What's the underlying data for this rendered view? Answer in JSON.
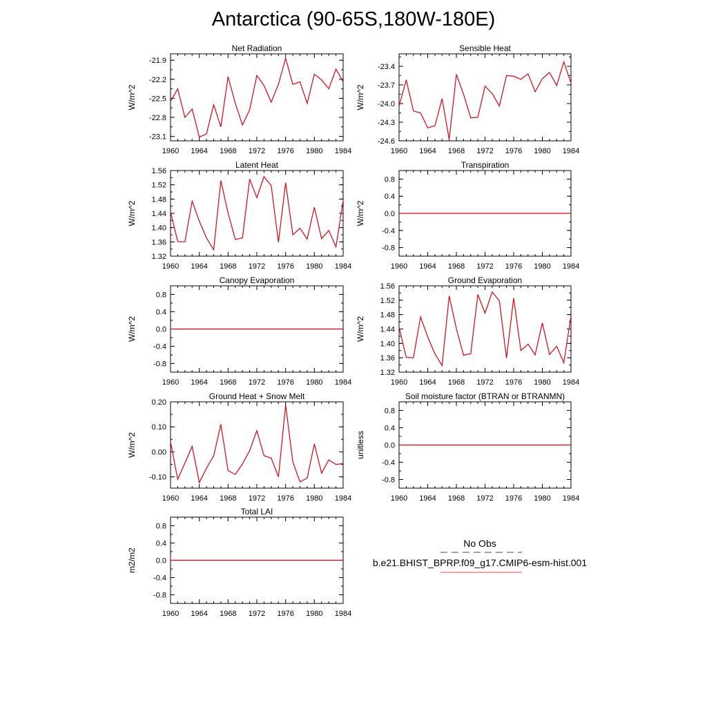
{
  "title": "Antarctica (90-65S,180W-180E)",
  "colors": {
    "model": "#e0000f",
    "axis": "#000000",
    "obs": "#3a3aa8",
    "legend_line": "#ff4040"
  },
  "legend": {
    "obs_label": "No Obs",
    "model_label": "b.e21.BHIST_BPRP.f09_g17.CMIP6-esm-hist.001"
  },
  "chart_data": [
    {
      "type": "line",
      "title": "Net Radiation",
      "ylabel": "W/m^2",
      "xlim": [
        1960,
        1984
      ],
      "ylim": [
        -23.17,
        -21.8
      ],
      "xticks": [
        "1960",
        "1964",
        "1968",
        "1972",
        "1976",
        "1980",
        "1984"
      ],
      "yticks": [
        "-21.9",
        "-22.2",
        "-22.5",
        "-22.8",
        "-23.1"
      ],
      "ytick_values": [
        -21.9,
        -22.2,
        -22.5,
        -22.8,
        -23.1
      ],
      "x": [
        1960,
        1961,
        1962,
        1963,
        1964,
        1965,
        1966,
        1967,
        1968,
        1969,
        1970,
        1971,
        1972,
        1973,
        1974,
        1975,
        1976,
        1977,
        1978,
        1979,
        1980,
        1981,
        1982,
        1983,
        1984
      ],
      "series": [
        {
          "values": [
            -22.55,
            -22.35,
            -22.8,
            -22.67,
            -23.11,
            -23.06,
            -22.6,
            -22.95,
            -22.16,
            -22.58,
            -22.92,
            -22.68,
            -22.14,
            -22.3,
            -22.56,
            -22.28,
            -21.87,
            -22.28,
            -22.24,
            -22.58,
            -22.12,
            -22.21,
            -22.35,
            -22.04,
            -22.24
          ]
        }
      ]
    },
    {
      "type": "line",
      "title": "Sensible Heat",
      "ylabel": "W/m^2",
      "xlim": [
        1960,
        1984
      ],
      "ylim": [
        -24.6,
        -23.2
      ],
      "xticks": [
        "1960",
        "1964",
        "1968",
        "1972",
        "1976",
        "1980",
        "1984"
      ],
      "yticks": [
        "-23.4",
        "-23.7",
        "-24.0",
        "-24.3",
        "-24.6"
      ],
      "ytick_values": [
        -23.4,
        -23.7,
        -24.0,
        -24.3,
        -24.6
      ],
      "x": [
        1960,
        1961,
        1962,
        1963,
        1964,
        1965,
        1966,
        1967,
        1968,
        1969,
        1970,
        1971,
        1972,
        1973,
        1974,
        1975,
        1976,
        1977,
        1978,
        1979,
        1980,
        1981,
        1982,
        1983,
        1984
      ],
      "series": [
        {
          "values": [
            -24.04,
            -23.62,
            -24.12,
            -24.15,
            -24.39,
            -24.36,
            -23.92,
            -24.58,
            -23.53,
            -23.85,
            -24.23,
            -24.22,
            -23.72,
            -23.84,
            -24.04,
            -23.55,
            -23.56,
            -23.61,
            -23.52,
            -23.81,
            -23.6,
            -23.5,
            -23.71,
            -23.33,
            -23.67
          ]
        }
      ]
    },
    {
      "type": "line",
      "title": "Latent Heat",
      "ylabel": "W/m^2",
      "xlim": [
        1960,
        1984
      ],
      "ylim": [
        1.32,
        1.56
      ],
      "xticks": [
        "1960",
        "1964",
        "1968",
        "1972",
        "1976",
        "1980",
        "1984"
      ],
      "yticks": [
        "1.56",
        "1.52",
        "1.48",
        "1.44",
        "1.40",
        "1.36",
        "1.32"
      ],
      "ytick_values": [
        1.56,
        1.52,
        1.48,
        1.44,
        1.4,
        1.36,
        1.32
      ],
      "x": [
        1960,
        1961,
        1962,
        1963,
        1964,
        1965,
        1966,
        1967,
        1968,
        1969,
        1970,
        1971,
        1972,
        1973,
        1974,
        1975,
        1976,
        1977,
        1978,
        1979,
        1980,
        1981,
        1982,
        1983,
        1984
      ],
      "series": [
        {
          "values": [
            1.445,
            1.361,
            1.36,
            1.474,
            1.418,
            1.371,
            1.338,
            1.532,
            1.441,
            1.367,
            1.371,
            1.536,
            1.484,
            1.543,
            1.518,
            1.359,
            1.526,
            1.38,
            1.398,
            1.368,
            1.457,
            1.369,
            1.392,
            1.346,
            1.476
          ]
        }
      ]
    },
    {
      "type": "line",
      "title": "Transpiration",
      "ylabel": "W/m^2",
      "xlim": [
        1960,
        1984
      ],
      "ylim": [
        -1.0,
        1.0
      ],
      "xticks": [
        "1960",
        "1964",
        "1968",
        "1972",
        "1976",
        "1980",
        "1984"
      ],
      "yticks": [
        "0.8",
        "0.4",
        "0.0",
        "-0.4",
        "-0.8"
      ],
      "ytick_values": [
        0.8,
        0.4,
        0.0,
        -0.4,
        -0.8
      ],
      "x": [
        1960,
        1984
      ],
      "series": [
        {
          "values": [
            0.0,
            0.0
          ]
        }
      ]
    },
    {
      "type": "line",
      "title": "Canopy Evaporation",
      "ylabel": "W/m^2",
      "xlim": [
        1960,
        1984
      ],
      "ylim": [
        -1.0,
        1.0
      ],
      "xticks": [
        "1960",
        "1964",
        "1968",
        "1972",
        "1976",
        "1980",
        "1984"
      ],
      "yticks": [
        "0.8",
        "0.4",
        "0.0",
        "-0.4",
        "-0.8"
      ],
      "ytick_values": [
        0.8,
        0.4,
        0.0,
        -0.4,
        -0.8
      ],
      "x": [
        1960,
        1984
      ],
      "series": [
        {
          "values": [
            0.0,
            0.0
          ]
        }
      ]
    },
    {
      "type": "line",
      "title": "Ground Evaporation",
      "ylabel": "W/m^2",
      "xlim": [
        1960,
        1984
      ],
      "ylim": [
        1.32,
        1.56
      ],
      "xticks": [
        "1960",
        "1964",
        "1968",
        "1972",
        "1976",
        "1980",
        "1984"
      ],
      "yticks": [
        "1.56",
        "1.52",
        "1.48",
        "1.44",
        "1.40",
        "1.36",
        "1.32"
      ],
      "ytick_values": [
        1.56,
        1.52,
        1.48,
        1.44,
        1.4,
        1.36,
        1.32
      ],
      "x": [
        1960,
        1961,
        1962,
        1963,
        1964,
        1965,
        1966,
        1967,
        1968,
        1969,
        1970,
        1971,
        1972,
        1973,
        1974,
        1975,
        1976,
        1977,
        1978,
        1979,
        1980,
        1981,
        1982,
        1983,
        1984
      ],
      "series": [
        {
          "values": [
            1.445,
            1.361,
            1.36,
            1.474,
            1.418,
            1.371,
            1.338,
            1.532,
            1.441,
            1.367,
            1.371,
            1.536,
            1.484,
            1.543,
            1.518,
            1.359,
            1.526,
            1.38,
            1.398,
            1.368,
            1.457,
            1.369,
            1.392,
            1.346,
            1.476
          ]
        }
      ]
    },
    {
      "type": "line",
      "title": "Ground Heat + Snow Melt",
      "ylabel": "W/m^2",
      "xlim": [
        1960,
        1984
      ],
      "ylim": [
        -0.145,
        0.2
      ],
      "xticks": [
        "1960",
        "1964",
        "1968",
        "1972",
        "1976",
        "1980",
        "1984"
      ],
      "yticks": [
        "0.20",
        "0.10",
        "0.00",
        "-0.10"
      ],
      "ytick_values": [
        0.2,
        0.1,
        0.0,
        -0.1
      ],
      "x": [
        1960,
        1961,
        1962,
        1963,
        1964,
        1965,
        1966,
        1967,
        1968,
        1969,
        1970,
        1971,
        1972,
        1973,
        1974,
        1975,
        1976,
        1977,
        1978,
        1979,
        1980,
        1981,
        1982,
        1983,
        1984
      ],
      "series": [
        {
          "values": [
            0.04,
            -0.11,
            -0.045,
            0.022,
            -0.123,
            -0.065,
            -0.016,
            0.11,
            -0.075,
            -0.09,
            -0.048,
            0.005,
            0.085,
            -0.015,
            -0.025,
            -0.1,
            0.187,
            -0.04,
            -0.12,
            -0.105,
            0.032,
            -0.085,
            -0.032,
            -0.05,
            -0.047
          ]
        }
      ]
    },
    {
      "type": "line",
      "title": "Soil moisture factor (BTRAN or BTRANMN)",
      "ylabel": "unitless",
      "xlim": [
        1960,
        1984
      ],
      "ylim": [
        -1.0,
        1.0
      ],
      "xticks": [
        "1960",
        "1964",
        "1968",
        "1972",
        "1976",
        "1980",
        "1984"
      ],
      "yticks": [
        "0.8",
        "0.4",
        "0.0",
        "-0.4",
        "-0.8"
      ],
      "ytick_values": [
        0.8,
        0.4,
        0.0,
        -0.4,
        -0.8
      ],
      "x": [
        1960,
        1984
      ],
      "series": [
        {
          "values": [
            0.0,
            0.0
          ]
        }
      ]
    },
    {
      "type": "line",
      "title": "Total LAI",
      "ylabel": "m2/m2",
      "xlim": [
        1960,
        1984
      ],
      "ylim": [
        -1.0,
        1.0
      ],
      "xticks": [
        "1960",
        "1964",
        "1968",
        "1972",
        "1976",
        "1980",
        "1984"
      ],
      "yticks": [
        "0.8",
        "0.4",
        "0.0",
        "-0.4",
        "-0.8"
      ],
      "ytick_values": [
        0.8,
        0.4,
        0.0,
        -0.4,
        -0.8
      ],
      "x": [
        1960,
        1984
      ],
      "series": [
        {
          "values": [
            0.0,
            0.0
          ]
        }
      ]
    }
  ]
}
